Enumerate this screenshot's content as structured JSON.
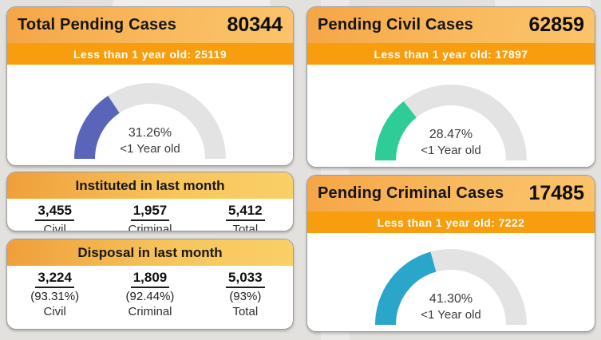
{
  "theme": {
    "background": "#e3e1de",
    "banner_color": "#f89d0e",
    "header_gradient": [
      "#f5a646",
      "#fbc36b"
    ],
    "gauge_track_color": "#e3e3e3",
    "gauge_colors": {
      "total": "#5a65ba",
      "civil": "#2ecd98",
      "criminal": "#2aa6cb"
    }
  },
  "cards": {
    "total": {
      "title": "Total Pending Cases",
      "count": "80344",
      "banner": "Less than 1 year old: 25119",
      "gauge": {
        "percent": 31.26,
        "percent_label": "31.26%",
        "sublabel": "<1 Year old",
        "color": "#5a65ba"
      }
    },
    "civil": {
      "title": "Pending Civil Cases",
      "count": "62859",
      "banner": "Less than 1 year old: 17897",
      "gauge": {
        "percent": 28.47,
        "percent_label": "28.47%",
        "sublabel": "<1 Year old",
        "color": "#2ecd98"
      }
    },
    "criminal": {
      "title": "Pending Criminal Cases",
      "count": "17485",
      "banner": "Less than 1 year old: 7222",
      "gauge": {
        "percent": 41.3,
        "percent_label": "41.30%",
        "sublabel": "<1 Year old",
        "color": "#2aa6cb"
      }
    },
    "instituted": {
      "title": "Instituted in last month",
      "columns": [
        {
          "value": "3,455",
          "label": "Civil"
        },
        {
          "value": "1,957",
          "label": "Criminal"
        },
        {
          "value": "5,412",
          "label": "Total"
        }
      ]
    },
    "disposal": {
      "title": "Disposal in last month",
      "columns": [
        {
          "value": "3,224",
          "percent": "(93.31%)",
          "label": "Civil"
        },
        {
          "value": "1,809",
          "percent": "(92.44%)",
          "label": "Criminal"
        },
        {
          "value": "5,033",
          "percent": "(93%)",
          "label": "Total"
        }
      ]
    }
  },
  "chart_data": [
    {
      "type": "pie",
      "variant": "semicircle-gauge",
      "title": "Total Pending Cases",
      "total_cases": 80344,
      "less_than_1_year_cases": 25119,
      "percent_less_than_1_year": 31.26,
      "center_labels": [
        "31.26%",
        "<1 Year old"
      ],
      "fill_color": "#5a65ba",
      "track_color": "#e3e3e3"
    },
    {
      "type": "pie",
      "variant": "semicircle-gauge",
      "title": "Pending Civil Cases",
      "total_cases": 62859,
      "less_than_1_year_cases": 17897,
      "percent_less_than_1_year": 28.47,
      "center_labels": [
        "28.47%",
        "<1 Year old"
      ],
      "fill_color": "#2ecd98",
      "track_color": "#e3e3e3"
    },
    {
      "type": "pie",
      "variant": "semicircle-gauge",
      "title": "Pending Criminal Cases",
      "total_cases": 17485,
      "less_than_1_year_cases": 7222,
      "percent_less_than_1_year": 41.3,
      "center_labels": [
        "41.30%",
        "<1 Year old"
      ],
      "fill_color": "#2aa6cb",
      "track_color": "#e3e3e3"
    },
    {
      "type": "table",
      "title": "Instituted in last month",
      "categories": [
        "Civil",
        "Criminal",
        "Total"
      ],
      "values": [
        3455,
        1957,
        5412
      ]
    },
    {
      "type": "table",
      "title": "Disposal in last month",
      "categories": [
        "Civil",
        "Criminal",
        "Total"
      ],
      "values": [
        3224,
        1809,
        5033
      ],
      "percentages": [
        93.31,
        92.44,
        93
      ]
    }
  ]
}
